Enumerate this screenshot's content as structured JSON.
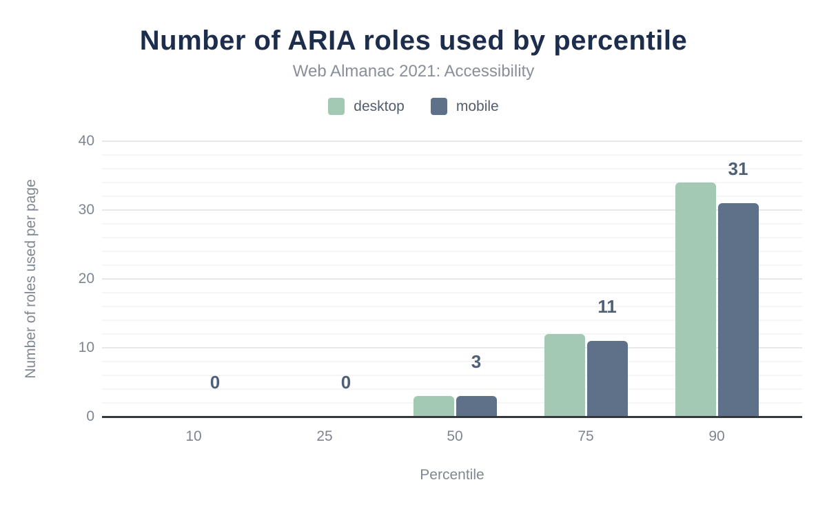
{
  "chart_data": {
    "type": "bar",
    "title": "Number of ARIA roles used by percentile",
    "subtitle": "Web Almanac 2021: Accessibility",
    "xlabel": "Percentile",
    "ylabel": "Number of roles used per page",
    "categories": [
      "10",
      "25",
      "50",
      "75",
      "90"
    ],
    "series": [
      {
        "name": "desktop",
        "color": "#a3c9b4",
        "values": [
          0,
          0,
          3,
          12,
          34
        ]
      },
      {
        "name": "mobile",
        "color": "#5f7189",
        "values": [
          0,
          0,
          3,
          11,
          31
        ]
      }
    ],
    "bar_labels": {
      "applies_to": "mobile",
      "values": [
        "0",
        "0",
        "3",
        "11",
        "31"
      ]
    },
    "ylim": [
      0,
      40
    ],
    "y_ticks": [
      0,
      10,
      20,
      30,
      40
    ],
    "grid": {
      "visible": true,
      "minor_step": 2,
      "major_step": 10
    },
    "legend_position": "top",
    "colors": {
      "title": "#1d2e4d",
      "subtitle": "#898f99",
      "legend_text": "#525d6b",
      "tick_text": "#7d8590",
      "axis_title_text": "#808791",
      "bar_label_text": "#4e5f78",
      "axis_line": "#34383d",
      "grid_minor": "#f5f5f6",
      "grid_major": "#e7e8ea",
      "background": "#ffffff"
    }
  }
}
